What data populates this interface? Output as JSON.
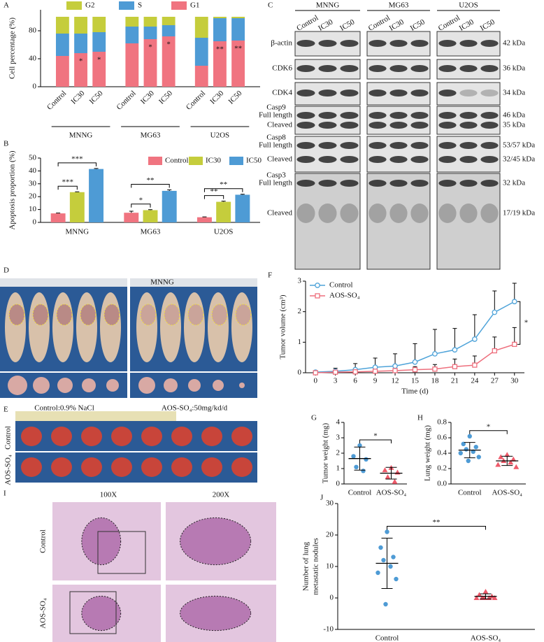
{
  "chart_data": [
    {
      "panel": "A",
      "type": "bar",
      "stacked": true,
      "ylabel": "Cell percentage (%)",
      "ylim": [
        0,
        110
      ],
      "yticks": [
        0,
        40,
        80
      ],
      "categories": [
        "Control",
        "IC30",
        "IC50",
        "Control",
        "IC30",
        "IC50",
        "Control",
        "IC30",
        "IC50"
      ],
      "groups": [
        "MNNG",
        "MG63",
        "U2OS"
      ],
      "series": [
        {
          "name": "G1",
          "color": "#f07480",
          "values": [
            44,
            48,
            50,
            62,
            68,
            72,
            30,
            65,
            66
          ]
        },
        {
          "name": "S",
          "color": "#4e9bd5",
          "values": [
            32,
            28,
            28,
            24,
            18,
            16,
            40,
            33,
            32
          ]
        },
        {
          "name": "G2",
          "color": "#c5cd3c",
          "values": [
            24,
            24,
            22,
            14,
            14,
            12,
            30,
            2,
            2
          ]
        }
      ],
      "significance": [
        null,
        "*",
        "*",
        null,
        "*",
        "*",
        null,
        "**",
        "**"
      ],
      "legend": "top"
    },
    {
      "panel": "B",
      "type": "bar",
      "stacked": false,
      "ylabel": "Apoptosis proportion (%)",
      "ylim": [
        0,
        50
      ],
      "yticks": [
        0,
        10,
        20,
        30,
        40,
        50
      ],
      "categories": [
        "MNNG",
        "MG63",
        "U2OS"
      ],
      "series": [
        {
          "name": "Control",
          "color": "#f07480",
          "values": [
            7,
            7.5,
            4
          ],
          "errors": [
            0.3,
            1.2,
            0.3
          ]
        },
        {
          "name": "IC30",
          "color": "#c5cd3c",
          "values": [
            23.5,
            9.5,
            16
          ],
          "errors": [
            0.3,
            0.4,
            0.5
          ]
        },
        {
          "name": "IC50",
          "color": "#4e9bd5",
          "values": [
            41.5,
            24.5,
            21.5
          ],
          "errors": [
            0.4,
            0.8,
            0.4
          ]
        }
      ],
      "significance": [
        [
          "***",
          "***"
        ],
        [
          "*",
          "**"
        ],
        [
          "**",
          "**"
        ]
      ],
      "legend": "top-right"
    },
    {
      "panel": "F",
      "type": "line",
      "xlabel": "Time (d)",
      "ylabel": "Tumor volume (cm³)",
      "x": [
        0,
        3,
        6,
        9,
        12,
        15,
        18,
        21,
        24,
        27,
        30
      ],
      "xlim": [
        -1.5,
        31.5
      ],
      "xticks": [
        0,
        3,
        6,
        9,
        12,
        15,
        18,
        21,
        24,
        27,
        30
      ],
      "ylim": [
        0,
        3
      ],
      "yticks": [
        0,
        1,
        2,
        3
      ],
      "series": [
        {
          "name": "Control",
          "color": "#4ea3d9",
          "marker": "circle",
          "values": [
            0.02,
            0.05,
            0.1,
            0.18,
            0.22,
            0.35,
            0.62,
            0.75,
            1.1,
            1.98,
            2.33
          ],
          "errors": [
            0.05,
            0.1,
            0.2,
            0.3,
            0.4,
            0.6,
            0.8,
            0.7,
            0.8,
            0.7,
            0.6
          ]
        },
        {
          "name": "AOS-SO₄",
          "color": "#ee6f7d",
          "marker": "square",
          "values": [
            0,
            0.02,
            0.03,
            0.05,
            0.07,
            0.1,
            0.12,
            0.2,
            0.25,
            0.72,
            0.93
          ],
          "errors": [
            0.02,
            0.03,
            0.05,
            0.05,
            0.05,
            0.1,
            0.15,
            0.25,
            0.3,
            0.45,
            0.55
          ]
        }
      ],
      "significance": "*",
      "legend": "top-left"
    },
    {
      "panel": "G",
      "type": "dot",
      "ylabel": "Tumor weight (mg)",
      "categories": [
        "Control",
        "AOS-SO₄"
      ],
      "values": [
        [
          2.5,
          1.8,
          1.6,
          1.1,
          0.85
        ],
        [
          1.05,
          0.9,
          0.75,
          0.45,
          0.15
        ]
      ],
      "means": [
        1.65,
        0.7
      ],
      "sd": [
        0.75,
        0.38
      ],
      "colors": [
        "#4e9bd5",
        "#ee5a6a"
      ],
      "markers": [
        "circle",
        "triangle"
      ],
      "ylim": [
        0,
        4
      ],
      "yticks": [
        0,
        1,
        2,
        3,
        4
      ],
      "significance": "*"
    },
    {
      "panel": "H",
      "type": "dot",
      "ylabel": "Lung weight (mg)",
      "categories": [
        "Control",
        "AOS-SO₄"
      ],
      "values": [
        [
          0.62,
          0.52,
          0.48,
          0.45,
          0.42,
          0.4,
          0.35,
          0.3
        ],
        [
          0.38,
          0.35,
          0.32,
          0.3,
          0.28,
          0.25,
          0.22
        ]
      ],
      "means": [
        0.44,
        0.3
      ],
      "sd": [
        0.1,
        0.06
      ],
      "colors": [
        "#4e9bd5",
        "#ee5a6a"
      ],
      "markers": [
        "circle",
        "triangle"
      ],
      "ylim": [
        0,
        0.8
      ],
      "yticks": [
        {
          "value": 0,
          "label": "0.0"
        },
        {
          "value": 0.2,
          "label": "0.2"
        },
        {
          "value": 0.4,
          "label": "0.4"
        },
        {
          "value": 0.6,
          "label": "0.6"
        },
        {
          "value": 0.8,
          "label": "0.8"
        }
      ],
      "significance": "*"
    },
    {
      "panel": "J",
      "type": "dot",
      "ylabel_lines": [
        "Number of lung",
        "metastatic nodules"
      ],
      "categories": [
        "Control",
        "AOS-SO₄"
      ],
      "values": [
        [
          21,
          16,
          13,
          12,
          10,
          8,
          6,
          -2
        ],
        [
          2,
          1,
          0.5,
          0,
          0,
          0,
          0,
          0
        ]
      ],
      "means": [
        11,
        0.5
      ],
      "sd": [
        8,
        0.8
      ],
      "colors": [
        "#4e9bd5",
        "#ee5a6a"
      ],
      "markers": [
        "circle",
        "triangle"
      ],
      "ylim": [
        -10,
        30
      ],
      "yticks": [
        -10,
        0,
        10,
        20,
        30
      ],
      "significance": "**"
    }
  ],
  "blot": {
    "panel": "C",
    "groups": [
      "MNNG",
      "MG63",
      "U2OS"
    ],
    "lanes": [
      [
        "Control",
        "IC30",
        "IC50"
      ],
      [
        "Control",
        "IC30",
        "IC50"
      ],
      [
        "Control",
        "IC30",
        "IC50"
      ]
    ],
    "rows": [
      {
        "protein": "β-actin",
        "bands": [
          {
            "size": "42 kDa"
          }
        ]
      },
      {
        "protein": "CDK6",
        "bands": [
          {
            "size": "36 kDa"
          }
        ]
      },
      {
        "protein": "CDK4",
        "bands": [
          {
            "size": "34 kDa"
          }
        ]
      },
      {
        "protein": "Casp9",
        "bands": [
          {
            "label": "Full length",
            "size": "46 kDa"
          },
          {
            "label": "Cleaved",
            "size": "35 kDa"
          }
        ]
      },
      {
        "protein": "Casp8",
        "bands": [
          {
            "label": "Full length",
            "size": "53/57 kDa"
          },
          {
            "label": "Cleaved",
            "size": "32/45 kDa"
          }
        ]
      },
      {
        "protein": "Casp3",
        "bands": [
          {
            "label": "Full length",
            "size": "32 kDa"
          },
          {
            "label": "Cleaved",
            "size": "17/19 kDa"
          }
        ]
      }
    ]
  },
  "tumor_photo": {
    "panel": "D",
    "title": "MNNG",
    "captions": [
      "Control:0.9% NaCl",
      "AOS-SO₄:50mg/kd/d"
    ]
  },
  "lung_photo": {
    "panel": "E",
    "rows": [
      "Control",
      "AOS-SO₄"
    ]
  },
  "histology": {
    "panel": "I",
    "columns": [
      "100X",
      "200X"
    ],
    "rows": [
      "Control",
      "AOS-SO₄"
    ]
  }
}
